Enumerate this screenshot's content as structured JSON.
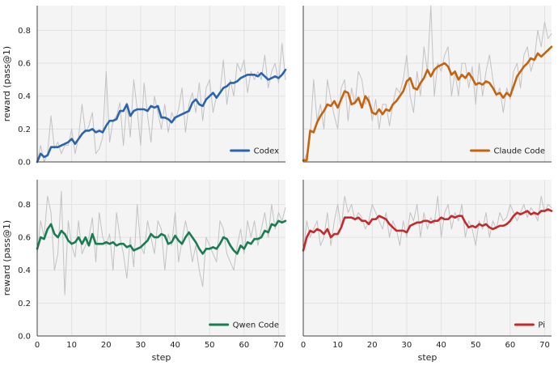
{
  "chart_data": [
    {
      "type": "line",
      "panel": "top-left",
      "title": "",
      "xlabel": "",
      "ylabel": "reward (pass@1)",
      "xlim": [
        0,
        72
      ],
      "ylim": [
        0,
        0.95
      ],
      "xticks": [],
      "yticks": [
        0.0,
        0.2,
        0.4,
        0.6,
        0.8
      ],
      "ytick_labels": [
        "0.0",
        "0.2",
        "0.4",
        "0.6",
        "0.8"
      ],
      "grid": true,
      "legend_position": "bottom-right",
      "series": [
        {
          "name": "Codex",
          "color": "#2b64ad",
          "role": "smoothed",
          "values": [
            0.0,
            0.05,
            0.03,
            0.04,
            0.09,
            0.09,
            0.09,
            0.1,
            0.11,
            0.12,
            0.14,
            0.11,
            0.14,
            0.17,
            0.19,
            0.19,
            0.2,
            0.18,
            0.19,
            0.18,
            0.22,
            0.25,
            0.25,
            0.26,
            0.31,
            0.31,
            0.35,
            0.28,
            0.31,
            0.32,
            0.32,
            0.32,
            0.31,
            0.34,
            0.33,
            0.34,
            0.27,
            0.27,
            0.26,
            0.24,
            0.27,
            0.28,
            0.29,
            0.3,
            0.31,
            0.36,
            0.38,
            0.35,
            0.34,
            0.38,
            0.4,
            0.42,
            0.39,
            0.42,
            0.45,
            0.46,
            0.48,
            0.48,
            0.49,
            0.51,
            0.52,
            0.53,
            0.53,
            0.53,
            0.52,
            0.54,
            0.52,
            0.5,
            0.51,
            0.52,
            0.51,
            0.53,
            0.56
          ]
        },
        {
          "name": "",
          "color": "#c2c2c2",
          "role": "raw",
          "values": [
            0.0,
            0.1,
            0.0,
            0.05,
            0.28,
            0.08,
            0.12,
            0.05,
            0.1,
            0.1,
            0.2,
            0.05,
            0.15,
            0.35,
            0.18,
            0.22,
            0.3,
            0.05,
            0.08,
            0.15,
            0.55,
            0.12,
            0.25,
            0.28,
            0.36,
            0.1,
            0.36,
            0.15,
            0.5,
            0.32,
            0.1,
            0.48,
            0.28,
            0.12,
            0.4,
            0.3,
            0.2,
            0.35,
            0.18,
            0.3,
            0.25,
            0.32,
            0.45,
            0.18,
            0.35,
            0.42,
            0.3,
            0.48,
            0.25,
            0.45,
            0.5,
            0.3,
            0.4,
            0.42,
            0.62,
            0.35,
            0.5,
            0.4,
            0.6,
            0.55,
            0.62,
            0.42,
            0.55,
            0.5,
            0.55,
            0.5,
            0.65,
            0.45,
            0.55,
            0.6,
            0.48,
            0.72,
            0.5
          ]
        }
      ]
    },
    {
      "type": "line",
      "panel": "top-right",
      "title": "",
      "xlabel": "",
      "ylabel": "",
      "xlim": [
        0,
        72
      ],
      "ylim": [
        0,
        0.95
      ],
      "xticks": [],
      "yticks": [
        0.0,
        0.2,
        0.4,
        0.6,
        0.8
      ],
      "ytick_labels": [],
      "grid": true,
      "legend_position": "bottom-right",
      "series": [
        {
          "name": "Claude Code",
          "color": "#c5630f",
          "role": "smoothed",
          "values": [
            0.01,
            0.01,
            0.19,
            0.18,
            0.24,
            0.28,
            0.31,
            0.35,
            0.34,
            0.37,
            0.33,
            0.38,
            0.43,
            0.42,
            0.35,
            0.36,
            0.39,
            0.33,
            0.4,
            0.37,
            0.3,
            0.29,
            0.32,
            0.29,
            0.32,
            0.31,
            0.35,
            0.37,
            0.4,
            0.43,
            0.49,
            0.51,
            0.45,
            0.44,
            0.48,
            0.51,
            0.56,
            0.52,
            0.56,
            0.58,
            0.59,
            0.6,
            0.58,
            0.53,
            0.55,
            0.5,
            0.53,
            0.51,
            0.54,
            0.51,
            0.47,
            0.48,
            0.47,
            0.49,
            0.48,
            0.45,
            0.41,
            0.42,
            0.39,
            0.42,
            0.4,
            0.46,
            0.52,
            0.55,
            0.58,
            0.6,
            0.63,
            0.62,
            0.66,
            0.64,
            0.66,
            0.68,
            0.7
          ]
        },
        {
          "name": "",
          "color": "#c2c2c2",
          "role": "raw",
          "values": [
            0.0,
            0.05,
            0.15,
            0.5,
            0.25,
            0.35,
            0.2,
            0.5,
            0.38,
            0.28,
            0.2,
            0.45,
            0.5,
            0.25,
            0.45,
            0.35,
            0.55,
            0.5,
            0.35,
            0.4,
            0.25,
            0.38,
            0.2,
            0.35,
            0.35,
            0.22,
            0.35,
            0.45,
            0.42,
            0.5,
            0.65,
            0.4,
            0.3,
            0.55,
            0.4,
            0.7,
            0.55,
            0.95,
            0.4,
            0.6,
            0.55,
            0.65,
            0.7,
            0.4,
            0.55,
            0.4,
            0.6,
            0.6,
            0.45,
            0.58,
            0.35,
            0.6,
            0.4,
            0.55,
            0.65,
            0.5,
            0.4,
            0.45,
            0.3,
            0.45,
            0.38,
            0.55,
            0.6,
            0.45,
            0.65,
            0.7,
            0.55,
            0.62,
            0.8,
            0.7,
            0.85,
            0.75,
            0.78
          ]
        }
      ]
    },
    {
      "type": "line",
      "panel": "bottom-left",
      "title": "",
      "xlabel": "step",
      "ylabel": "reward (pass@1)",
      "xlim": [
        0,
        72
      ],
      "ylim": [
        0,
        0.95
      ],
      "xticks": [
        0,
        10,
        20,
        30,
        40,
        50,
        60,
        70
      ],
      "yticks": [
        0.0,
        0.2,
        0.4,
        0.6,
        0.8
      ],
      "ytick_labels": [
        "0.0",
        "0.2",
        "0.4",
        "0.6",
        "0.8"
      ],
      "grid": true,
      "legend_position": "bottom-right",
      "series": [
        {
          "name": "Qwen Code",
          "color": "#1a7d52",
          "role": "smoothed",
          "values": [
            0.53,
            0.6,
            0.59,
            0.65,
            0.68,
            0.62,
            0.6,
            0.64,
            0.62,
            0.58,
            0.56,
            0.57,
            0.6,
            0.56,
            0.6,
            0.55,
            0.62,
            0.56,
            0.56,
            0.56,
            0.57,
            0.56,
            0.57,
            0.55,
            0.56,
            0.56,
            0.54,
            0.55,
            0.52,
            0.53,
            0.54,
            0.56,
            0.58,
            0.62,
            0.6,
            0.6,
            0.62,
            0.61,
            0.56,
            0.57,
            0.61,
            0.58,
            0.56,
            0.6,
            0.63,
            0.6,
            0.57,
            0.53,
            0.5,
            0.53,
            0.53,
            0.54,
            0.53,
            0.56,
            0.6,
            0.59,
            0.55,
            0.52,
            0.5,
            0.55,
            0.53,
            0.57,
            0.56,
            0.59,
            0.59,
            0.6,
            0.64,
            0.63,
            0.68,
            0.67,
            0.7,
            0.69,
            0.7
          ]
        },
        {
          "name": "",
          "color": "#c2c2c2",
          "role": "raw",
          "values": [
            0.5,
            0.7,
            0.6,
            0.85,
            0.75,
            0.4,
            0.5,
            0.88,
            0.25,
            0.7,
            0.55,
            0.48,
            0.7,
            0.5,
            0.55,
            0.6,
            0.72,
            0.45,
            0.75,
            0.6,
            0.55,
            0.62,
            0.4,
            0.75,
            0.6,
            0.5,
            0.35,
            0.6,
            0.42,
            0.8,
            0.55,
            0.5,
            0.7,
            0.6,
            0.5,
            0.7,
            0.65,
            0.4,
            0.62,
            0.55,
            0.75,
            0.45,
            0.58,
            0.7,
            0.6,
            0.45,
            0.55,
            0.4,
            0.3,
            0.6,
            0.55,
            0.5,
            0.45,
            0.7,
            0.65,
            0.5,
            0.45,
            0.4,
            0.55,
            0.65,
            0.5,
            0.7,
            0.6,
            0.7,
            0.55,
            0.65,
            0.75,
            0.6,
            0.8,
            0.65,
            0.75,
            0.7,
            0.78
          ]
        }
      ]
    },
    {
      "type": "line",
      "panel": "bottom-right",
      "title": "",
      "xlabel": "step",
      "ylabel": "",
      "xlim": [
        0,
        72
      ],
      "ylim": [
        0,
        0.95
      ],
      "xticks": [
        0,
        10,
        20,
        30,
        40,
        50,
        60,
        70
      ],
      "yticks": [
        0.0,
        0.2,
        0.4,
        0.6,
        0.8
      ],
      "ytick_labels": [],
      "grid": true,
      "legend_position": "bottom-right",
      "series": [
        {
          "name": "Pi",
          "color": "#c42a2a",
          "role": "smoothed",
          "values": [
            0.52,
            0.6,
            0.64,
            0.63,
            0.65,
            0.64,
            0.62,
            0.65,
            0.6,
            0.62,
            0.62,
            0.66,
            0.72,
            0.72,
            0.72,
            0.71,
            0.72,
            0.7,
            0.7,
            0.68,
            0.71,
            0.71,
            0.73,
            0.72,
            0.71,
            0.68,
            0.66,
            0.64,
            0.64,
            0.64,
            0.63,
            0.67,
            0.68,
            0.69,
            0.69,
            0.7,
            0.7,
            0.69,
            0.7,
            0.7,
            0.72,
            0.71,
            0.71,
            0.73,
            0.72,
            0.73,
            0.73,
            0.69,
            0.66,
            0.67,
            0.66,
            0.68,
            0.67,
            0.68,
            0.66,
            0.65,
            0.66,
            0.67,
            0.67,
            0.68,
            0.7,
            0.73,
            0.75,
            0.74,
            0.75,
            0.76,
            0.74,
            0.75,
            0.74,
            0.76,
            0.76,
            0.77,
            0.76
          ]
        },
        {
          "name": "",
          "color": "#c2c2c2",
          "role": "raw",
          "values": [
            0.5,
            0.7,
            0.6,
            0.65,
            0.7,
            0.55,
            0.6,
            0.75,
            0.55,
            0.7,
            0.8,
            0.65,
            0.85,
            0.75,
            0.8,
            0.7,
            0.75,
            0.72,
            0.65,
            0.7,
            0.8,
            0.75,
            0.7,
            0.65,
            0.75,
            0.6,
            0.7,
            0.65,
            0.55,
            0.7,
            0.6,
            0.75,
            0.7,
            0.8,
            0.6,
            0.75,
            0.65,
            0.72,
            0.68,
            0.85,
            0.6,
            0.75,
            0.8,
            0.65,
            0.75,
            0.7,
            0.8,
            0.6,
            0.7,
            0.65,
            0.55,
            0.7,
            0.65,
            0.75,
            0.6,
            0.7,
            0.65,
            0.75,
            0.7,
            0.72,
            0.8,
            0.75,
            0.7,
            0.75,
            0.8,
            0.72,
            0.78,
            0.75,
            0.7,
            0.85,
            0.75,
            0.8,
            0.78
          ]
        }
      ]
    }
  ]
}
